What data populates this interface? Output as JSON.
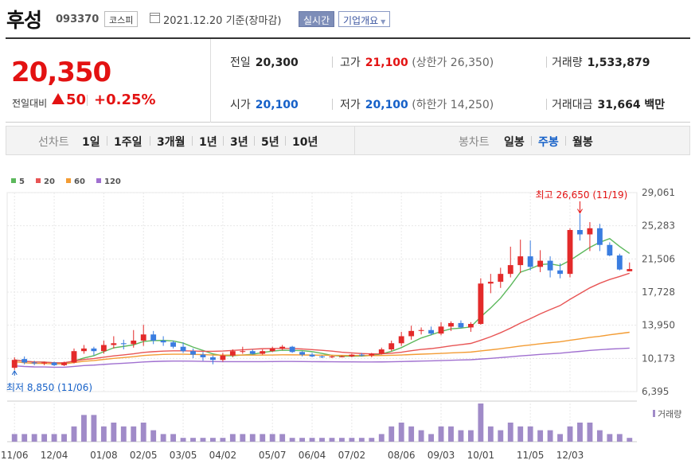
{
  "stock": {
    "name": "후성",
    "code": "093370",
    "market": "코스피",
    "date": "2021.12.20 기준(장마감)",
    "realtime_btn": "실시간",
    "company_btn": "기업개요"
  },
  "price": {
    "current": "20,350",
    "change_label": "전일대비",
    "change": "50",
    "change_pct": "+0.25%"
  },
  "stats": {
    "prev_label": "전일",
    "prev_value": "20,300",
    "open_label": "시가",
    "open_value": "20,100",
    "high_label": "고가",
    "high_value": "21,100",
    "upper_limit": "(상한가 26,350)",
    "low_label": "저가",
    "low_value": "20,100",
    "lower_limit": "(하한가 14,250)",
    "volume_label": "거래량",
    "volume_value": "1,533,879",
    "amount_label": "거래대금",
    "amount_value": "31,664 백만"
  },
  "tabs": {
    "line_chart": "선차트",
    "line_periods": [
      "1일",
      "1주일",
      "3개월",
      "1년",
      "3년",
      "5년",
      "10년"
    ],
    "candle_chart": "봉차트",
    "candle_periods": [
      "일봉",
      "주봉",
      "월봉"
    ],
    "candle_selected": 1
  },
  "chart_data": {
    "type": "candlestick",
    "legend": [
      {
        "name": "5",
        "color": "#5cb85c"
      },
      {
        "name": "20",
        "color": "#e85555"
      },
      {
        "name": "60",
        "color": "#f39c34"
      },
      {
        "name": "120",
        "color": "#a070d0"
      }
    ],
    "y_ticks": [
      "29,061",
      "25,283",
      "21,506",
      "17,728",
      "13,950",
      "10,173",
      "6,395"
    ],
    "y_tick_values": [
      29061,
      25283,
      21506,
      17728,
      13950,
      10173,
      6395
    ],
    "ylim": [
      6395,
      29061
    ],
    "x_tick_labels": [
      "11/06",
      "12/04",
      "01/08",
      "02/05",
      "03/05",
      "04/02",
      "05/07",
      "06/04",
      "07/02",
      "08/06",
      "09/03",
      "10/01",
      "11/05",
      "12/03"
    ],
    "x_tick_index": [
      0,
      4,
      9,
      13,
      17,
      21,
      26,
      30,
      34,
      39,
      43,
      47,
      52,
      56
    ],
    "high_annotation": "최고 26,650 (11/19)",
    "low_annotation": "최저 8,850 (11/06)",
    "volume_label": "거래량",
    "up_color": "#e32a2a",
    "down_color": "#3a7de0",
    "candles": [
      {
        "o": 9100,
        "h": 10300,
        "l": 8850,
        "c": 10000
      },
      {
        "o": 10100,
        "h": 10400,
        "l": 9500,
        "c": 9700
      },
      {
        "o": 9700,
        "h": 9900,
        "l": 9400,
        "c": 9600
      },
      {
        "o": 9600,
        "h": 9800,
        "l": 9400,
        "c": 9700
      },
      {
        "o": 9700,
        "h": 9800,
        "l": 9300,
        "c": 9400
      },
      {
        "o": 9400,
        "h": 9800,
        "l": 9300,
        "c": 9700
      },
      {
        "o": 9700,
        "h": 11300,
        "l": 9600,
        "c": 11000
      },
      {
        "o": 11000,
        "h": 11700,
        "l": 10700,
        "c": 11300
      },
      {
        "o": 11300,
        "h": 11500,
        "l": 10500,
        "c": 11000
      },
      {
        "o": 11000,
        "h": 12200,
        "l": 10700,
        "c": 11700
      },
      {
        "o": 11700,
        "h": 12700,
        "l": 11300,
        "c": 11900
      },
      {
        "o": 11900,
        "h": 12300,
        "l": 11200,
        "c": 11800
      },
      {
        "o": 11800,
        "h": 13400,
        "l": 11400,
        "c": 12200
      },
      {
        "o": 12200,
        "h": 14000,
        "l": 11600,
        "c": 12900
      },
      {
        "o": 12900,
        "h": 13300,
        "l": 11800,
        "c": 12200
      },
      {
        "o": 12200,
        "h": 12700,
        "l": 11600,
        "c": 12000
      },
      {
        "o": 12000,
        "h": 12200,
        "l": 11300,
        "c": 11500
      },
      {
        "o": 11500,
        "h": 12000,
        "l": 10800,
        "c": 11000
      },
      {
        "o": 11000,
        "h": 11300,
        "l": 10200,
        "c": 10600
      },
      {
        "o": 10600,
        "h": 10900,
        "l": 9900,
        "c": 10300
      },
      {
        "o": 10300,
        "h": 10500,
        "l": 9500,
        "c": 10000
      },
      {
        "o": 10000,
        "h": 10800,
        "l": 9800,
        "c": 10500
      },
      {
        "o": 10500,
        "h": 11200,
        "l": 10300,
        "c": 11000
      },
      {
        "o": 11000,
        "h": 11500,
        "l": 10700,
        "c": 11000
      },
      {
        "o": 11000,
        "h": 11200,
        "l": 10600,
        "c": 10700
      },
      {
        "o": 10700,
        "h": 11200,
        "l": 10600,
        "c": 11000
      },
      {
        "o": 11000,
        "h": 11500,
        "l": 10900,
        "c": 11300
      },
      {
        "o": 11300,
        "h": 11700,
        "l": 11100,
        "c": 11500
      },
      {
        "o": 11500,
        "h": 11600,
        "l": 10800,
        "c": 10900
      },
      {
        "o": 10900,
        "h": 11000,
        "l": 10400,
        "c": 10600
      },
      {
        "o": 10600,
        "h": 10800,
        "l": 10300,
        "c": 10400
      },
      {
        "o": 10400,
        "h": 10500,
        "l": 10200,
        "c": 10300
      },
      {
        "o": 10300,
        "h": 10500,
        "l": 10200,
        "c": 10400
      },
      {
        "o": 10400,
        "h": 10500,
        "l": 10300,
        "c": 10400
      },
      {
        "o": 10400,
        "h": 10700,
        "l": 10300,
        "c": 10600
      },
      {
        "o": 10600,
        "h": 10800,
        "l": 10400,
        "c": 10500
      },
      {
        "o": 10500,
        "h": 10800,
        "l": 10300,
        "c": 10700
      },
      {
        "o": 10700,
        "h": 11400,
        "l": 10600,
        "c": 11200
      },
      {
        "o": 11200,
        "h": 12200,
        "l": 11000,
        "c": 11900
      },
      {
        "o": 11900,
        "h": 13200,
        "l": 11600,
        "c": 12700
      },
      {
        "o": 12700,
        "h": 13900,
        "l": 12300,
        "c": 13300
      },
      {
        "o": 13300,
        "h": 13700,
        "l": 12900,
        "c": 13400
      },
      {
        "o": 13400,
        "h": 13800,
        "l": 12800,
        "c": 13000
      },
      {
        "o": 13000,
        "h": 14300,
        "l": 12800,
        "c": 13800
      },
      {
        "o": 13800,
        "h": 14400,
        "l": 13300,
        "c": 14200
      },
      {
        "o": 14200,
        "h": 14500,
        "l": 13600,
        "c": 13700
      },
      {
        "o": 13700,
        "h": 14300,
        "l": 13200,
        "c": 14100
      },
      {
        "o": 14100,
        "h": 19300,
        "l": 14000,
        "c": 18700
      },
      {
        "o": 18700,
        "h": 19800,
        "l": 17600,
        "c": 18900
      },
      {
        "o": 18900,
        "h": 20500,
        "l": 18200,
        "c": 19800
      },
      {
        "o": 19800,
        "h": 22900,
        "l": 19400,
        "c": 20800
      },
      {
        "o": 20800,
        "h": 23700,
        "l": 19900,
        "c": 21800
      },
      {
        "o": 21800,
        "h": 23600,
        "l": 20200,
        "c": 20600
      },
      {
        "o": 20600,
        "h": 22500,
        "l": 20000,
        "c": 21300
      },
      {
        "o": 21300,
        "h": 21800,
        "l": 19400,
        "c": 20200
      },
      {
        "o": 20200,
        "h": 21000,
        "l": 19300,
        "c": 19800
      },
      {
        "o": 19800,
        "h": 25000,
        "l": 19400,
        "c": 24800
      },
      {
        "o": 24800,
        "h": 26650,
        "l": 23600,
        "c": 24300
      },
      {
        "o": 24300,
        "h": 25700,
        "l": 22400,
        "c": 25000
      },
      {
        "o": 25000,
        "h": 25500,
        "l": 22400,
        "c": 23100
      },
      {
        "o": 23100,
        "h": 23400,
        "l": 21800,
        "c": 21900
      },
      {
        "o": 21900,
        "h": 22100,
        "l": 20200,
        "c": 20300
      },
      {
        "o": 20100,
        "h": 21100,
        "l": 20100,
        "c": 20350
      }
    ],
    "volume": [
      2,
      2,
      2,
      2,
      2,
      2,
      4,
      7,
      7,
      4,
      5,
      4,
      4,
      5,
      3,
      2,
      2,
      1,
      1,
      1,
      1,
      1,
      2,
      2,
      2,
      2,
      2,
      2,
      1,
      1,
      1,
      1,
      1,
      1,
      1,
      1,
      1,
      2,
      4,
      5,
      4,
      3,
      2,
      4,
      4,
      3,
      3,
      10,
      4,
      3,
      5,
      4,
      4,
      3,
      3,
      2,
      4,
      5,
      5,
      3,
      2,
      2,
      1
    ]
  }
}
